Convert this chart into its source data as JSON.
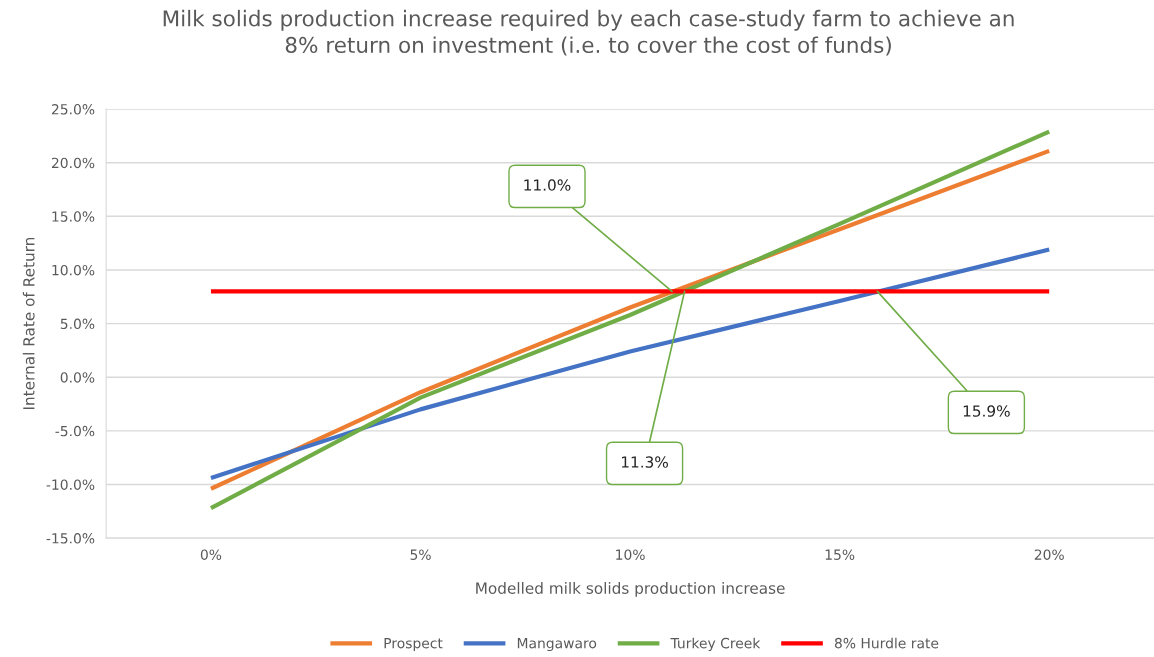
{
  "chart_data": {
    "type": "line",
    "title": "Milk solids production increase required by each case-study farm to achieve an\n8% return on investment (i.e. to cover the cost of funds)",
    "xlabel": "Modelled milk solids production increase",
    "ylabel": "Internal Rate of Return",
    "x": [
      0,
      5,
      10,
      15,
      20
    ],
    "series": [
      {
        "name": "Prospect",
        "color": "#ed7d31",
        "values": [
          -10.4,
          -1.4,
          6.5,
          13.8,
          21.1
        ]
      },
      {
        "name": "Mangawaro",
        "color": "#4472c4",
        "values": [
          -9.4,
          -3.0,
          2.4,
          7.1,
          11.9
        ]
      },
      {
        "name": "Turkey Creek",
        "color": "#70ad47",
        "values": [
          -12.2,
          -1.9,
          5.8,
          14.3,
          22.9
        ]
      },
      {
        "name": "8% Hurdle rate",
        "color": "#ff0000",
        "x": [
          0,
          20
        ],
        "values": [
          8,
          8
        ]
      }
    ],
    "xlim": [
      -2.5,
      22.5
    ],
    "xticks": [
      {
        "value": 0,
        "label": "0%"
      },
      {
        "value": 5,
        "label": "5%"
      },
      {
        "value": 10,
        "label": "10%"
      },
      {
        "value": 15,
        "label": "15%"
      },
      {
        "value": 20,
        "label": "20%"
      }
    ],
    "ylim": [
      -15,
      25
    ],
    "yticks": [
      {
        "value": -15,
        "label": "-15.0%"
      },
      {
        "value": -10,
        "label": "-10.0%"
      },
      {
        "value": -5,
        "label": "-5.0%"
      },
      {
        "value": 0,
        "label": "0.0%"
      },
      {
        "value": 5,
        "label": "5.0%"
      },
      {
        "value": 10,
        "label": "10.0%"
      },
      {
        "value": 15,
        "label": "15.0%"
      },
      {
        "value": 20,
        "label": "20.0%"
      },
      {
        "value": 25,
        "label": "25.0%"
      }
    ],
    "annotations": [
      {
        "text": "11.0%",
        "x": 11.0,
        "y": 8
      },
      {
        "text": "11.3%",
        "x": 11.3,
        "y": 8
      },
      {
        "text": "15.9%",
        "x": 15.9,
        "y": 8
      }
    ],
    "grid": "y",
    "legend": "bottom",
    "marker": "none",
    "line_style": "solid"
  }
}
